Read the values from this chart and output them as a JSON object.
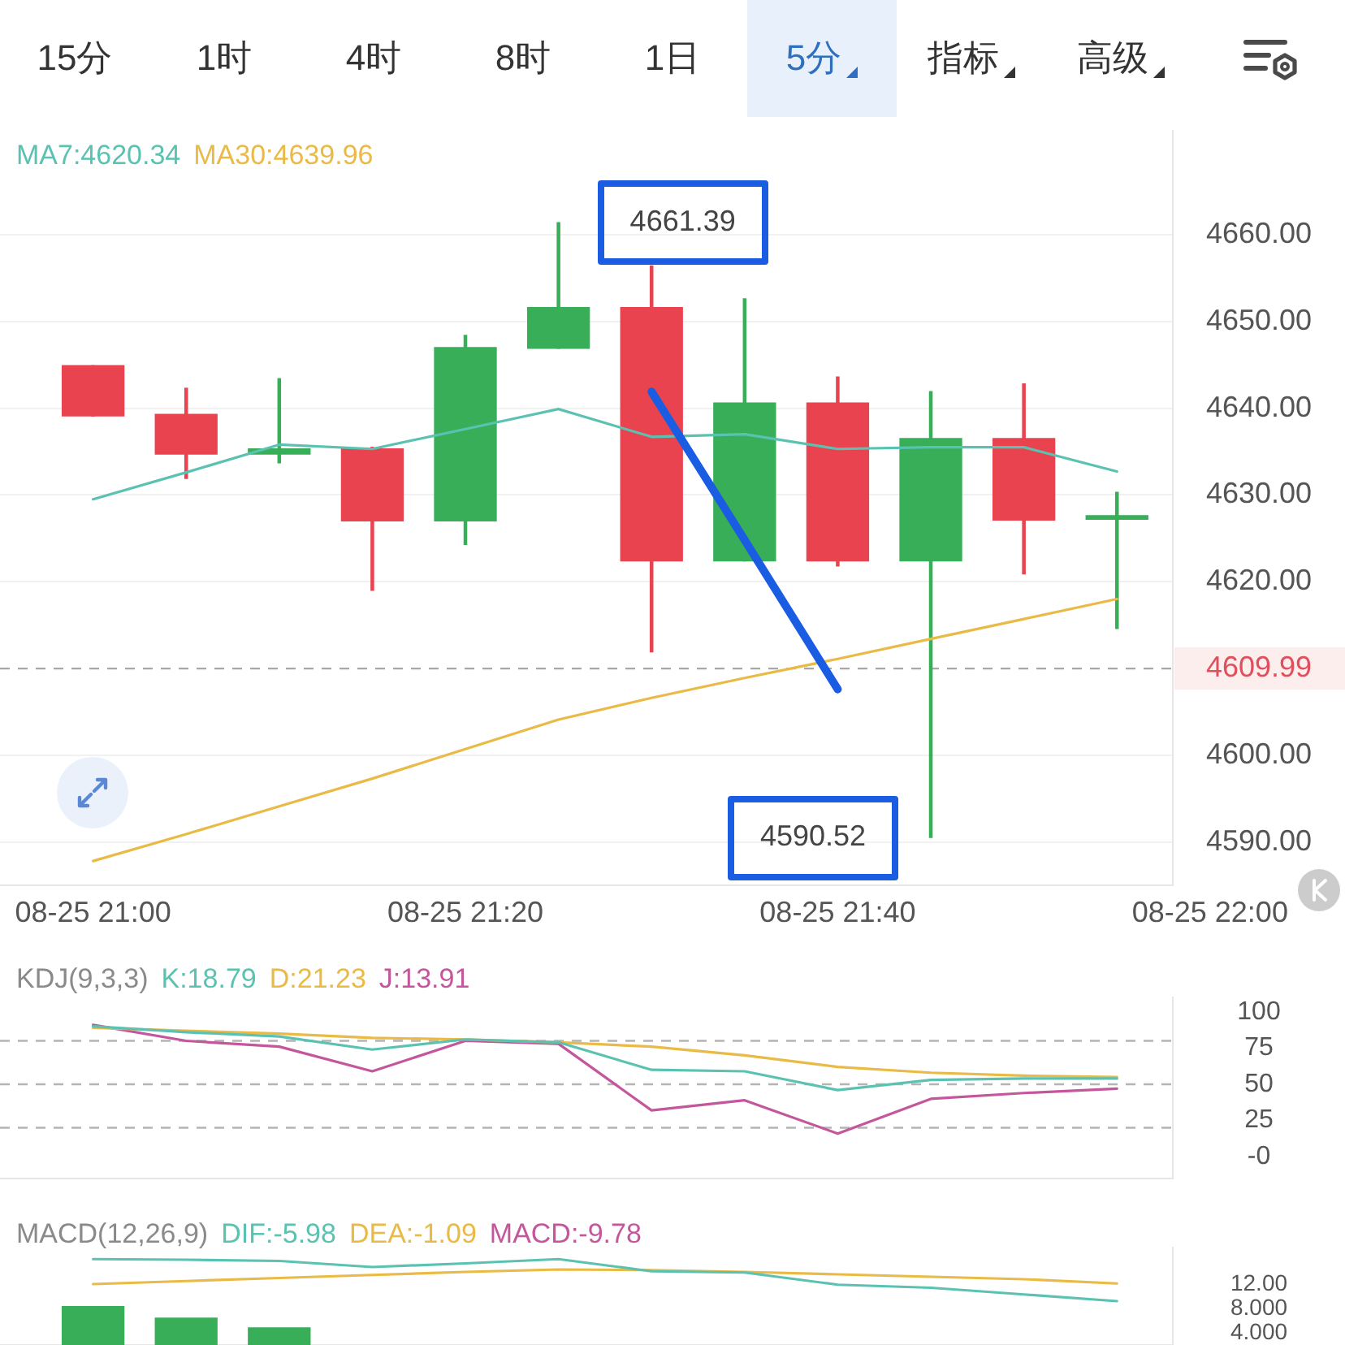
{
  "chart_data": [
    {
      "type": "other",
      "annotations": [
        "15分",
        "1时",
        "4时",
        "8时",
        "1日",
        "5分",
        "指标",
        "高级"
      ]
    },
    {
      "type": "candlestick",
      "categories": [
        "08-25 21:00",
        null,
        null,
        null,
        "08-25 21:20",
        null,
        null,
        null,
        "08-25 21:40",
        null,
        null,
        null,
        "08-25 22:00"
      ],
      "ohlc": [
        [
          4644.9,
          4644.9,
          4639.1,
          4639.1
        ],
        [
          4639.3,
          4642.3,
          4631.9,
          4634.7
        ],
        [
          4634.7,
          4643.4,
          4633.7,
          4635.3
        ],
        [
          4635.3,
          4635.5,
          4619.0,
          4627.0
        ],
        [
          4627.0,
          4648.4,
          4624.3,
          4647.0
        ],
        [
          4646.9,
          4661.39,
          4646.9,
          4651.6
        ],
        [
          4651.6,
          4656.4,
          4611.9,
          4622.4
        ],
        [
          4622.4,
          4652.6,
          4622.4,
          4640.6
        ],
        [
          4640.6,
          4643.6,
          4621.8,
          4622.4
        ],
        [
          4622.4,
          4641.9,
          4590.52,
          4636.5
        ],
        [
          4636.5,
          4642.8,
          4620.9,
          4627.1
        ],
        [
          4627.2,
          4630.3,
          4614.6,
          4627.6
        ],
        null
      ],
      "colors": [
        "#e8434f",
        "#e8434f",
        "#38ae58",
        "#e8434f",
        "#38ae58",
        "#38ae58",
        "#e8434f",
        "#38ae58",
        "#e8434f",
        "#38ae58",
        "#e8434f",
        "#38ae58",
        null
      ],
      "series": [
        {
          "type": "line",
          "name": "MA7:4620.34",
          "color": "#5bc2b2",
          "values": [
            4629.5,
            4632.6,
            4635.8,
            4635.3,
            4637.6,
            4639.9,
            4636.7,
            4637.0,
            4635.3,
            4635.5,
            4635.5,
            4632.7,
            null
          ]
        },
        {
          "type": "line",
          "name": "MA30:4639.96",
          "color": "#e9ba45",
          "values": [
            4587.8,
            4590.9,
            4594.1,
            4597.3,
            4600.7,
            4604.1,
            4606.6,
            4608.9,
            4611.1,
            4613.4,
            4615.7,
            4618.0,
            null
          ]
        },
        {
          "type": "line",
          "color": "#1a5de3",
          "values": [
            null,
            null,
            null,
            null,
            null,
            null,
            4641.9,
            4624.8,
            4607.6,
            null,
            null,
            null,
            null
          ]
        }
      ],
      "ylim": [
        4585,
        4672
      ],
      "yticks": [
        {
          "value": 4660,
          "label": "4660.00"
        },
        {
          "value": 4650,
          "label": "4650.00"
        },
        {
          "value": 4640,
          "label": "4640.00"
        },
        {
          "value": 4630,
          "label": "4630.00"
        },
        {
          "value": 4620,
          "label": "4620.00"
        },
        4609.99,
        {
          "value": 4600,
          "label": "4600.00"
        },
        {
          "value": 4590,
          "label": "4590.00"
        }
      ],
      "grid": "y",
      "legend": "top left",
      "marker": "none",
      "ref_lines": [
        {
          "axis": "y",
          "value": 4609.99,
          "color": "#a8a8a8",
          "line_style": "dashed"
        }
      ],
      "annotations": [
        "4661.39",
        "4590.52"
      ]
    },
    {
      "type": "line",
      "title": "KDJ(9,3,3)",
      "categories": [
        null,
        null,
        null,
        null,
        null,
        null,
        null,
        null,
        null,
        null,
        null,
        null,
        null
      ],
      "tick_labels": "y",
      "series": [
        {
          "name": "K:18.79",
          "color": "#5bc2b2",
          "values": [
            90,
            86,
            83,
            74,
            81,
            79,
            60,
            59,
            46,
            53,
            54,
            54,
            null
          ]
        },
        {
          "name": "D:21.23",
          "color": "#e9ba45",
          "values": [
            89,
            87,
            85,
            82,
            81,
            79,
            76,
            70,
            62,
            58,
            56,
            55,
            null
          ]
        },
        {
          "name": "J:13.91",
          "color": "#c4569c",
          "values": [
            91,
            80,
            76,
            59,
            80,
            78,
            32,
            39,
            16,
            40,
            44,
            47,
            null
          ]
        }
      ],
      "ylim": [
        -15,
        110
      ],
      "yticks": [
        100,
        75,
        50,
        25,
        {
          "value": 0,
          "label": "-0"
        }
      ],
      "legend": "top left",
      "marker": "none",
      "ref_lines": [
        {
          "axis": "y",
          "value": 80,
          "color": "#b4b4b4",
          "line_style": "dashed"
        },
        {
          "axis": "y",
          "value": 50,
          "color": "#b4b4b4",
          "line_style": "dashed"
        },
        {
          "axis": "y",
          "value": 20,
          "color": "#b4b4b4",
          "line_style": "dashed"
        }
      ]
    },
    {
      "type": "line",
      "title": "MACD(12,26,9)",
      "categories": [
        null,
        null,
        null,
        null,
        null,
        null,
        null,
        null,
        null,
        null,
        null,
        null,
        null
      ],
      "tick_labels": "y",
      "series": [
        {
          "name": "DIF:-5.98",
          "color": "#5bc2b2",
          "values": [
            16.1,
            16.0,
            15.8,
            14.8,
            15.4,
            16.1,
            14.1,
            13.9,
            11.9,
            11.4,
            10.3,
            9.2,
            null
          ]
        },
        {
          "name": "DEA:-1.09",
          "color": "#e9ba45",
          "values": [
            12.0,
            12.5,
            13.0,
            13.5,
            14.0,
            14.4,
            14.3,
            14.0,
            13.6,
            13.2,
            12.8,
            12.1,
            null
          ]
        },
        {
          "type": "bar",
          "color": "#38ae58",
          "values": [
            8.3,
            6.4,
            4.8,
            null,
            null,
            null,
            null,
            null,
            null,
            null,
            null,
            null,
            null
          ]
        }
      ],
      "ylim": [
        2,
        18
      ],
      "yticks": [
        {
          "value": 12,
          "label": "12.00"
        },
        {
          "value": 8,
          "label": "8.000"
        },
        {
          "value": 4,
          "label": "4.000"
        }
      ],
      "legend": "top left",
      "marker": "none",
      "annotations": [
        "MACD:-9.78"
      ]
    }
  ]
}
